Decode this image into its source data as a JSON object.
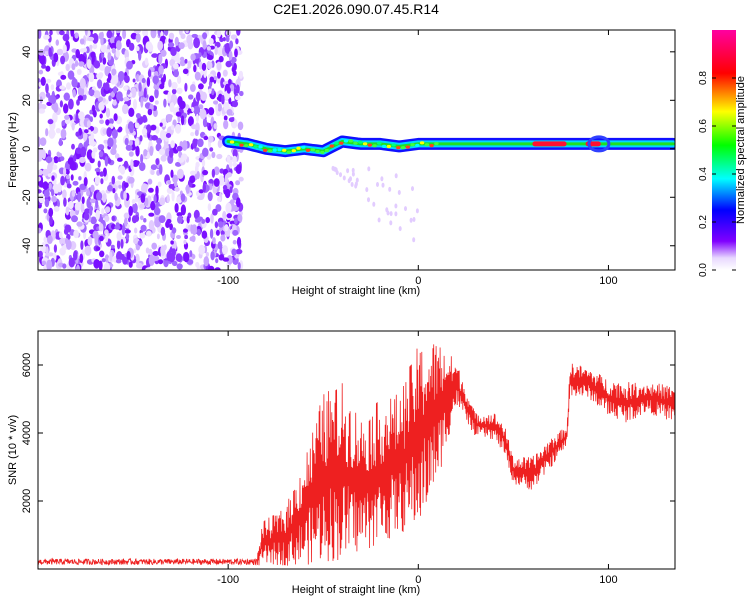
{
  "chart_data": [
    {
      "type": "heatmap",
      "title": "C2E1.2026.090.07.45.R14",
      "xlabel": "Height of straight line (km)",
      "ylabel": "Frequency (Hz)",
      "xlim": [
        -200,
        135
      ],
      "ylim": [
        -50,
        49
      ],
      "xticks": [
        -100,
        0,
        100
      ],
      "yticks": [
        -40,
        -20,
        0,
        20,
        40
      ],
      "noise_region_x": [
        -200,
        -93
      ],
      "signal_track": [
        {
          "x": -100,
          "f": 3
        },
        {
          "x": -90,
          "f": 2
        },
        {
          "x": -80,
          "f": 0
        },
        {
          "x": -70,
          "f": -1
        },
        {
          "x": -60,
          "f": 0
        },
        {
          "x": -50,
          "f": -1
        },
        {
          "x": -40,
          "f": 3
        },
        {
          "x": -30,
          "f": 2
        },
        {
          "x": -20,
          "f": 2
        },
        {
          "x": -10,
          "f": 1
        },
        {
          "x": 0,
          "f": 2
        },
        {
          "x": 20,
          "f": 2
        },
        {
          "x": 40,
          "f": 2
        },
        {
          "x": 60,
          "f": 2
        },
        {
          "x": 80,
          "f": 2
        },
        {
          "x": 100,
          "f": 2
        },
        {
          "x": 135,
          "f": 2
        }
      ],
      "colorbar": {
        "label": "Normalized spectral amplitude",
        "range": [
          0.0,
          1.0
        ],
        "ticks": [
          "0.0",
          "0.2",
          "0.4",
          "0.6",
          "0.8"
        ],
        "colors": [
          "#ffffff",
          "#8000ff",
          "#0000ff",
          "#00ffff",
          "#00ff00",
          "#ffff00",
          "#ff0000",
          "#ff00a0"
        ]
      }
    },
    {
      "type": "line",
      "xlabel": "Height of straight line (km)",
      "ylabel": "SNR (10 * v/v)",
      "xlim": [
        -200,
        135
      ],
      "ylim": [
        0,
        7000
      ],
      "xticks": [
        -100,
        0,
        100
      ],
      "yticks": [
        2000,
        4000,
        6000
      ],
      "color": "#ee2020",
      "envelope": [
        {
          "x": -200,
          "lo": 50,
          "hi": 300
        },
        {
          "x": -85,
          "lo": 50,
          "hi": 300
        },
        {
          "x": -82,
          "lo": 100,
          "hi": 1400
        },
        {
          "x": -70,
          "lo": 100,
          "hi": 1800
        },
        {
          "x": -60,
          "lo": 100,
          "hi": 3300
        },
        {
          "x": -50,
          "lo": 200,
          "hi": 5200
        },
        {
          "x": -40,
          "lo": 200,
          "hi": 5500
        },
        {
          "x": -30,
          "lo": 500,
          "hi": 4500
        },
        {
          "x": -20,
          "lo": 700,
          "hi": 5000
        },
        {
          "x": -10,
          "lo": 1000,
          "hi": 5200
        },
        {
          "x": 0,
          "lo": 1200,
          "hi": 6600
        },
        {
          "x": 10,
          "lo": 2500,
          "hi": 6800
        },
        {
          "x": 20,
          "lo": 4800,
          "hi": 6100
        },
        {
          "x": 30,
          "lo": 3900,
          "hi": 4600
        },
        {
          "x": 40,
          "lo": 3800,
          "hi": 4600
        },
        {
          "x": 45,
          "lo": 3400,
          "hi": 4300
        },
        {
          "x": 50,
          "lo": 2500,
          "hi": 3300
        },
        {
          "x": 60,
          "lo": 2300,
          "hi": 3300
        },
        {
          "x": 70,
          "lo": 3000,
          "hi": 3900
        },
        {
          "x": 78,
          "lo": 3600,
          "hi": 4200
        },
        {
          "x": 80,
          "lo": 5100,
          "hi": 6100
        },
        {
          "x": 90,
          "lo": 5000,
          "hi": 5900
        },
        {
          "x": 100,
          "lo": 4500,
          "hi": 5600
        },
        {
          "x": 110,
          "lo": 4300,
          "hi": 5500
        },
        {
          "x": 120,
          "lo": 4600,
          "hi": 5500
        },
        {
          "x": 135,
          "lo": 4300,
          "hi": 5400
        }
      ]
    }
  ]
}
